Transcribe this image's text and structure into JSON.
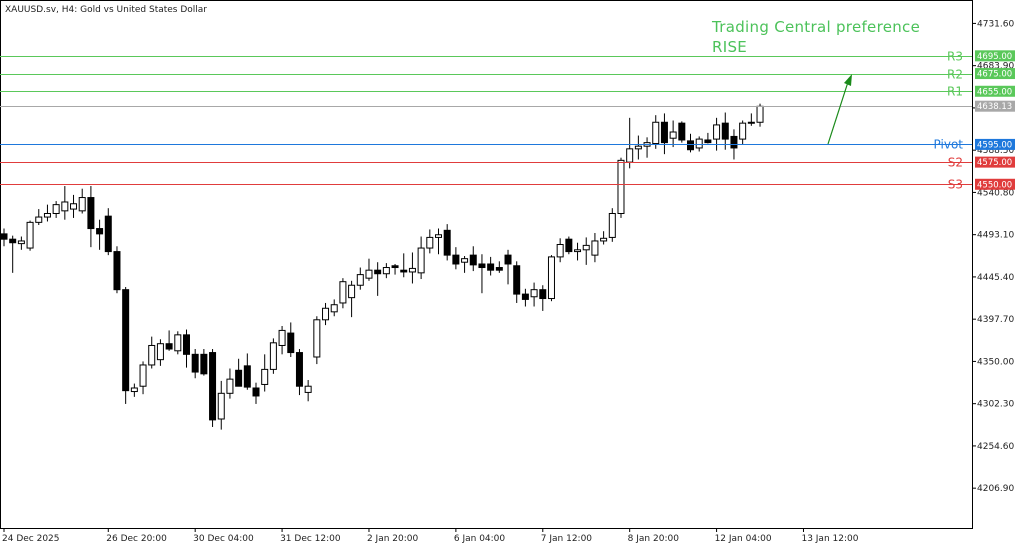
{
  "header": {
    "instrument_label": "XAUUSD.sv, H4:  Gold vs United States Dollar"
  },
  "annotation": {
    "line1": "Trading Central preference",
    "line2": "RISE",
    "color": "#4cc25a",
    "arrow_color": "#1a8a1a"
  },
  "chart_data": {
    "type": "candlestick",
    "title": "XAUUSD.sv, H4:  Gold vs United States Dollar",
    "ylim": [
      4180.0,
      4749.0
    ],
    "y_ticks": [
      {
        "value": 4731.6,
        "label": "4731.60"
      },
      {
        "value": 4683.9,
        "label": "4683.90"
      },
      {
        "value": 4636.2,
        "label": "4636.20"
      },
      {
        "value": 4588.5,
        "label": "4588.50"
      },
      {
        "value": 4540.8,
        "label": "4540.80"
      },
      {
        "value": 4493.1,
        "label": "4493.10"
      },
      {
        "value": 4445.4,
        "label": "4445.40"
      },
      {
        "value": 4397.7,
        "label": "4397.70"
      },
      {
        "value": 4350.0,
        "label": "4350.00"
      },
      {
        "value": 4302.3,
        "label": "4302.30"
      },
      {
        "value": 4254.6,
        "label": "4254.60"
      },
      {
        "value": 4206.9,
        "label": "4206.90"
      }
    ],
    "x_ticks": [
      {
        "index": 0,
        "label": "24 Dec 2025"
      },
      {
        "index": 12,
        "label": "26 Dec 20:00"
      },
      {
        "index": 22,
        "label": "30 Dec 04:00"
      },
      {
        "index": 32,
        "label": "31 Dec 12:00"
      },
      {
        "index": 42,
        "label": "2 Jan 20:00"
      },
      {
        "index": 52,
        "label": "6 Jan 04:00"
      },
      {
        "index": 62,
        "label": "7 Jan 12:00"
      },
      {
        "index": 72,
        "label": "8 Jan 20:00"
      },
      {
        "index": 82,
        "label": "12 Jan 04:00"
      },
      {
        "index": 92,
        "label": "13 Jan 12:00"
      }
    ],
    "levels": [
      {
        "name": "R3",
        "value": 4695.0,
        "label": "4695.00",
        "color": "#5ac85a"
      },
      {
        "name": "R2",
        "value": 4675.0,
        "label": "4675.00",
        "color": "#5ac85a"
      },
      {
        "name": "R1",
        "value": 4655.0,
        "label": "4655.00",
        "color": "#5ac85a"
      },
      {
        "name": "Pivot",
        "value": 4595.0,
        "label": "4595.00",
        "color": "#1e78dc"
      },
      {
        "name": "S2",
        "value": 4575.0,
        "label": "4575.00",
        "color": "#e03c3c"
      },
      {
        "name": "S3",
        "value": 4550.0,
        "label": "4550.00",
        "color": "#e03c3c"
      }
    ],
    "current_price": {
      "value": 4638.13,
      "label": "4638.13",
      "color": "#a8a8a8"
    },
    "candles": [
      {
        "o": 4494,
        "h": 4500,
        "l": 4480,
        "c": 4488
      },
      {
        "o": 4488,
        "h": 4492,
        "l": 4450,
        "c": 4484
      },
      {
        "o": 4483,
        "h": 4491,
        "l": 4476,
        "c": 4486
      },
      {
        "o": 4478,
        "h": 4509,
        "l": 4475,
        "c": 4507
      },
      {
        "o": 4507,
        "h": 4522,
        "l": 4504,
        "c": 4513
      },
      {
        "o": 4513,
        "h": 4527,
        "l": 4508,
        "c": 4517
      },
      {
        "o": 4517,
        "h": 4531,
        "l": 4512,
        "c": 4527
      },
      {
        "o": 4520,
        "h": 4548,
        "l": 4510,
        "c": 4530
      },
      {
        "o": 4522,
        "h": 4538,
        "l": 4512,
        "c": 4528
      },
      {
        "o": 4520,
        "h": 4545,
        "l": 4517,
        "c": 4535
      },
      {
        "o": 4535,
        "h": 4548,
        "l": 4479,
        "c": 4500
      },
      {
        "o": 4500,
        "h": 4510,
        "l": 4476,
        "c": 4494
      },
      {
        "o": 4514,
        "h": 4523,
        "l": 4470,
        "c": 4474
      },
      {
        "o": 4474,
        "h": 4480,
        "l": 4427,
        "c": 4431
      },
      {
        "o": 4431,
        "h": 4434,
        "l": 4302,
        "c": 4317
      },
      {
        "o": 4316,
        "h": 4325,
        "l": 4310,
        "c": 4320
      },
      {
        "o": 4322,
        "h": 4350,
        "l": 4313,
        "c": 4346
      },
      {
        "o": 4346,
        "h": 4378,
        "l": 4342,
        "c": 4368
      },
      {
        "o": 4352,
        "h": 4375,
        "l": 4345,
        "c": 4370
      },
      {
        "o": 4370,
        "h": 4385,
        "l": 4362,
        "c": 4364
      },
      {
        "o": 4362,
        "h": 4384,
        "l": 4358,
        "c": 4380
      },
      {
        "o": 4380,
        "h": 4386,
        "l": 4343,
        "c": 4358
      },
      {
        "o": 4358,
        "h": 4364,
        "l": 4331,
        "c": 4338
      },
      {
        "o": 4358,
        "h": 4364,
        "l": 4334,
        "c": 4336
      },
      {
        "o": 4360,
        "h": 4364,
        "l": 4276,
        "c": 4284
      },
      {
        "o": 4285,
        "h": 4328,
        "l": 4273,
        "c": 4314
      },
      {
        "o": 4314,
        "h": 4342,
        "l": 4308,
        "c": 4330
      },
      {
        "o": 4340,
        "h": 4353,
        "l": 4322,
        "c": 4322
      },
      {
        "o": 4345,
        "h": 4359,
        "l": 4318,
        "c": 4321
      },
      {
        "o": 4320,
        "h": 4326,
        "l": 4302,
        "c": 4311
      },
      {
        "o": 4324,
        "h": 4358,
        "l": 4316,
        "c": 4341
      },
      {
        "o": 4341,
        "h": 4376,
        "l": 4336,
        "c": 4371
      },
      {
        "o": 4368,
        "h": 4390,
        "l": 4358,
        "c": 4385
      },
      {
        "o": 4382,
        "h": 4394,
        "l": 4355,
        "c": 4360
      },
      {
        "o": 4360,
        "h": 4364,
        "l": 4312,
        "c": 4322
      },
      {
        "o": 4315,
        "h": 4329,
        "l": 4305,
        "c": 4322
      },
      {
        "o": 4355,
        "h": 4401,
        "l": 4347,
        "c": 4397
      },
      {
        "o": 4397,
        "h": 4416,
        "l": 4391,
        "c": 4410
      },
      {
        "o": 4406,
        "h": 4420,
        "l": 4401,
        "c": 4414
      },
      {
        "o": 4416,
        "h": 4444,
        "l": 4410,
        "c": 4440
      },
      {
        "o": 4422,
        "h": 4441,
        "l": 4400,
        "c": 4436
      },
      {
        "o": 4436,
        "h": 4456,
        "l": 4431,
        "c": 4448
      },
      {
        "o": 4444,
        "h": 4466,
        "l": 4441,
        "c": 4453
      },
      {
        "o": 4453,
        "h": 4462,
        "l": 4424,
        "c": 4449
      },
      {
        "o": 4449,
        "h": 4461,
        "l": 4444,
        "c": 4456
      },
      {
        "o": 4458,
        "h": 4460,
        "l": 4448,
        "c": 4456
      },
      {
        "o": 4453,
        "h": 4472,
        "l": 4445,
        "c": 4451
      },
      {
        "o": 4451,
        "h": 4473,
        "l": 4438,
        "c": 4455
      },
      {
        "o": 4450,
        "h": 4491,
        "l": 4443,
        "c": 4478
      },
      {
        "o": 4478,
        "h": 4499,
        "l": 4472,
        "c": 4490
      },
      {
        "o": 4490,
        "h": 4500,
        "l": 4471,
        "c": 4493
      },
      {
        "o": 4498,
        "h": 4505,
        "l": 4464,
        "c": 4470
      },
      {
        "o": 4470,
        "h": 4479,
        "l": 4454,
        "c": 4460
      },
      {
        "o": 4462,
        "h": 4469,
        "l": 4450,
        "c": 4466
      },
      {
        "o": 4470,
        "h": 4480,
        "l": 4452,
        "c": 4459
      },
      {
        "o": 4460,
        "h": 4471,
        "l": 4427,
        "c": 4456
      },
      {
        "o": 4460,
        "h": 4468,
        "l": 4447,
        "c": 4453
      },
      {
        "o": 4456,
        "h": 4463,
        "l": 4450,
        "c": 4453
      },
      {
        "o": 4470,
        "h": 4476,
        "l": 4437,
        "c": 4460
      },
      {
        "o": 4458,
        "h": 4463,
        "l": 4416,
        "c": 4426
      },
      {
        "o": 4426,
        "h": 4432,
        "l": 4412,
        "c": 4420
      },
      {
        "o": 4423,
        "h": 4439,
        "l": 4412,
        "c": 4431
      },
      {
        "o": 4431,
        "h": 4436,
        "l": 4407,
        "c": 4421
      },
      {
        "o": 4421,
        "h": 4470,
        "l": 4418,
        "c": 4468
      },
      {
        "o": 4468,
        "h": 4489,
        "l": 4462,
        "c": 4482
      },
      {
        "o": 4488,
        "h": 4491,
        "l": 4471,
        "c": 4474
      },
      {
        "o": 4474,
        "h": 4484,
        "l": 4464,
        "c": 4476
      },
      {
        "o": 4476,
        "h": 4490,
        "l": 4459,
        "c": 4481
      },
      {
        "o": 4470,
        "h": 4495,
        "l": 4462,
        "c": 4486
      },
      {
        "o": 4486,
        "h": 4497,
        "l": 4482,
        "c": 4489
      },
      {
        "o": 4490,
        "h": 4523,
        "l": 4485,
        "c": 4517
      },
      {
        "o": 4517,
        "h": 4580,
        "l": 4512,
        "c": 4577
      },
      {
        "o": 4575,
        "h": 4625,
        "l": 4568,
        "c": 4590
      },
      {
        "o": 4590,
        "h": 4605,
        "l": 4578,
        "c": 4593
      },
      {
        "o": 4593,
        "h": 4603,
        "l": 4580,
        "c": 4597
      },
      {
        "o": 4596,
        "h": 4628,
        "l": 4590,
        "c": 4620
      },
      {
        "o": 4620,
        "h": 4630,
        "l": 4584,
        "c": 4597
      },
      {
        "o": 4602,
        "h": 4622,
        "l": 4592,
        "c": 4609
      },
      {
        "o": 4619,
        "h": 4621,
        "l": 4597,
        "c": 4600
      },
      {
        "o": 4599,
        "h": 4607,
        "l": 4586,
        "c": 4589
      },
      {
        "o": 4591,
        "h": 4604,
        "l": 4587,
        "c": 4601
      },
      {
        "o": 4600,
        "h": 4608,
        "l": 4596,
        "c": 4597
      },
      {
        "o": 4601,
        "h": 4625,
        "l": 4588,
        "c": 4617
      },
      {
        "o": 4619,
        "h": 4631,
        "l": 4589,
        "c": 4601
      },
      {
        "o": 4604,
        "h": 4612,
        "l": 4578,
        "c": 4591
      },
      {
        "o": 4601,
        "h": 4622,
        "l": 4595,
        "c": 4619
      },
      {
        "o": 4619,
        "h": 4630,
        "l": 4616,
        "c": 4620
      },
      {
        "o": 4620,
        "h": 4641,
        "l": 4615,
        "c": 4638
      }
    ]
  }
}
